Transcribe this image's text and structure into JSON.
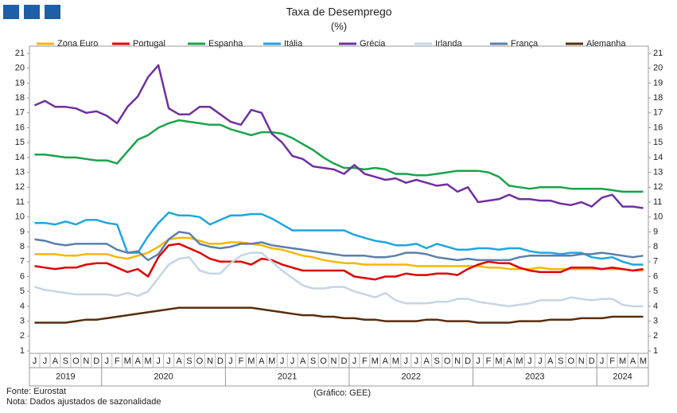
{
  "chart_data": {
    "type": "line",
    "title": "Taxa de Desemprego",
    "subtitle": "(%)",
    "categories": [
      "J",
      "J",
      "A",
      "S",
      "O",
      "N",
      "D",
      "J",
      "F",
      "M",
      "A",
      "M",
      "J",
      "J",
      "A",
      "S",
      "O",
      "N",
      "D",
      "J",
      "F",
      "M",
      "A",
      "M",
      "J",
      "J",
      "A",
      "S",
      "O",
      "N",
      "D",
      "J",
      "F",
      "M",
      "A",
      "M",
      "J",
      "J",
      "A",
      "S",
      "O",
      "N",
      "D",
      "J",
      "F",
      "M",
      "A",
      "M",
      "J",
      "J",
      "A",
      "S",
      "O",
      "N",
      "D",
      "J",
      "F",
      "M",
      "A",
      "M"
    ],
    "years": [
      "2019",
      "2020",
      "2021",
      "2022",
      "2023",
      "2024"
    ],
    "series": [
      {
        "name": "Zona Euro",
        "color": "#f5b800",
        "values": [
          7.5,
          7.5,
          7.5,
          7.4,
          7.4,
          7.5,
          7.5,
          7.5,
          7.3,
          7.2,
          7.4,
          7.6,
          8.0,
          8.5,
          8.6,
          8.6,
          8.4,
          8.2,
          8.2,
          8.3,
          8.3,
          8.2,
          8.1,
          7.9,
          7.8,
          7.6,
          7.4,
          7.3,
          7.1,
          7.0,
          6.9,
          6.9,
          6.8,
          6.8,
          6.8,
          6.8,
          6.8,
          6.7,
          6.7,
          6.7,
          6.7,
          6.7,
          6.7,
          6.7,
          6.6,
          6.6,
          6.5,
          6.5,
          6.5,
          6.6,
          6.5,
          6.5,
          6.5,
          6.5,
          6.5,
          6.5,
          6.5,
          6.5,
          6.4,
          6.4
        ]
      },
      {
        "name": "Portugal",
        "color": "#e00000",
        "values": [
          6.7,
          6.6,
          6.5,
          6.6,
          6.6,
          6.8,
          6.9,
          6.9,
          6.6,
          6.3,
          6.5,
          6.0,
          7.3,
          8.1,
          8.2,
          7.9,
          7.6,
          7.2,
          7.0,
          7.0,
          7.0,
          6.8,
          7.2,
          7.1,
          6.8,
          6.6,
          6.4,
          6.4,
          6.4,
          6.4,
          6.4,
          6.0,
          5.9,
          5.8,
          6.0,
          6.0,
          6.2,
          6.1,
          6.1,
          6.2,
          6.2,
          6.1,
          6.5,
          6.8,
          7.0,
          6.9,
          6.9,
          6.6,
          6.4,
          6.3,
          6.3,
          6.3,
          6.6,
          6.6,
          6.6,
          6.5,
          6.6,
          6.5,
          6.4,
          6.5
        ]
      },
      {
        "name": "Espanha",
        "color": "#1aa34a",
        "values": [
          14.2,
          14.2,
          14.1,
          14.0,
          14.0,
          13.9,
          13.8,
          13.8,
          13.6,
          14.4,
          15.2,
          15.5,
          16.0,
          16.3,
          16.5,
          16.4,
          16.3,
          16.2,
          16.2,
          15.9,
          15.7,
          15.5,
          15.7,
          15.7,
          15.6,
          15.3,
          14.9,
          14.5,
          14.0,
          13.6,
          13.3,
          13.3,
          13.2,
          13.3,
          13.2,
          12.9,
          12.9,
          12.8,
          12.8,
          12.9,
          13.0,
          13.1,
          13.1,
          13.1,
          13.0,
          12.7,
          12.1,
          12.0,
          11.9,
          12.0,
          12.0,
          12.0,
          11.9,
          11.9,
          11.9,
          11.9,
          11.8,
          11.7,
          11.7,
          11.7
        ]
      },
      {
        "name": "Itália",
        "color": "#1ea6e0",
        "values": [
          9.6,
          9.6,
          9.5,
          9.7,
          9.5,
          9.8,
          9.8,
          9.6,
          9.5,
          7.6,
          7.6,
          8.7,
          9.6,
          10.3,
          10.1,
          10.1,
          10.0,
          9.5,
          9.8,
          10.1,
          10.1,
          10.2,
          10.2,
          9.9,
          9.5,
          9.1,
          9.1,
          9.1,
          9.1,
          9.1,
          9.1,
          8.8,
          8.6,
          8.4,
          8.3,
          8.1,
          8.1,
          8.2,
          7.9,
          8.2,
          8.0,
          7.8,
          7.8,
          7.9,
          7.9,
          7.8,
          7.9,
          7.9,
          7.7,
          7.6,
          7.6,
          7.5,
          7.6,
          7.6,
          7.3,
          7.2,
          7.3,
          7.0,
          6.8,
          6.8
        ]
      },
      {
        "name": "Grécia",
        "color": "#7030a0",
        "values": [
          17.5,
          17.8,
          17.4,
          17.4,
          17.3,
          17.0,
          17.1,
          16.8,
          16.3,
          17.4,
          18.1,
          19.4,
          20.2,
          17.3,
          16.9,
          16.9,
          17.4,
          17.4,
          16.9,
          16.4,
          16.2,
          17.2,
          17.0,
          15.6,
          15.0,
          14.1,
          13.9,
          13.4,
          13.3,
          13.2,
          12.9,
          13.5,
          12.9,
          12.7,
          12.5,
          12.6,
          12.3,
          12.5,
          12.3,
          12.1,
          12.2,
          11.7,
          12.0,
          11.0,
          11.1,
          11.2,
          11.5,
          11.2,
          11.2,
          11.1,
          11.1,
          10.9,
          10.8,
          11.0,
          10.7,
          11.3,
          11.5,
          10.7,
          10.7,
          10.6
        ]
      },
      {
        "name": "Irlanda",
        "color": "#c5d5e6",
        "values": [
          5.3,
          5.1,
          5.0,
          4.9,
          4.8,
          4.8,
          4.8,
          4.8,
          4.7,
          4.9,
          4.7,
          5.0,
          5.9,
          6.8,
          7.2,
          7.3,
          6.4,
          6.2,
          6.2,
          6.9,
          7.4,
          7.6,
          7.6,
          7.0,
          6.4,
          5.9,
          5.4,
          5.2,
          5.2,
          5.3,
          5.3,
          5.0,
          4.8,
          4.6,
          4.9,
          4.4,
          4.2,
          4.2,
          4.2,
          4.3,
          4.3,
          4.5,
          4.5,
          4.3,
          4.2,
          4.1,
          4.0,
          4.1,
          4.2,
          4.4,
          4.4,
          4.4,
          4.6,
          4.5,
          4.4,
          4.5,
          4.5,
          4.1,
          4.0,
          4.0
        ]
      },
      {
        "name": "França",
        "color": "#5a7fad",
        "values": [
          8.5,
          8.4,
          8.2,
          8.1,
          8.2,
          8.2,
          8.2,
          8.2,
          7.8,
          7.6,
          7.7,
          7.1,
          7.5,
          8.5,
          9.0,
          8.9,
          8.2,
          8.0,
          7.9,
          8.0,
          8.2,
          8.2,
          8.3,
          8.1,
          8.0,
          7.9,
          7.8,
          7.7,
          7.6,
          7.5,
          7.4,
          7.4,
          7.4,
          7.3,
          7.3,
          7.4,
          7.6,
          7.6,
          7.5,
          7.3,
          7.2,
          7.1,
          7.2,
          7.1,
          7.1,
          7.1,
          7.1,
          7.3,
          7.4,
          7.4,
          7.4,
          7.4,
          7.4,
          7.5,
          7.5,
          7.6,
          7.5,
          7.4,
          7.3,
          7.4
        ]
      },
      {
        "name": "Alemanha",
        "color": "#5a2d0c",
        "values": [
          2.9,
          2.9,
          2.9,
          2.9,
          3.0,
          3.1,
          3.1,
          3.2,
          3.3,
          3.4,
          3.5,
          3.6,
          3.7,
          3.8,
          3.9,
          3.9,
          3.9,
          3.9,
          3.9,
          3.9,
          3.9,
          3.9,
          3.8,
          3.7,
          3.6,
          3.5,
          3.4,
          3.4,
          3.3,
          3.3,
          3.2,
          3.2,
          3.1,
          3.1,
          3.0,
          3.0,
          3.0,
          3.0,
          3.1,
          3.1,
          3.0,
          3.0,
          3.0,
          2.9,
          2.9,
          2.9,
          2.9,
          3.0,
          3.0,
          3.0,
          3.1,
          3.1,
          3.1,
          3.2,
          3.2,
          3.2,
          3.3,
          3.3,
          3.3,
          3.3
        ]
      }
    ],
    "ylim": [
      1,
      21
    ],
    "yticks": [
      1,
      2,
      3,
      4,
      5,
      6,
      7,
      8,
      9,
      10,
      11,
      12,
      13,
      14,
      15,
      16,
      17,
      18,
      19,
      20,
      21
    ],
    "grid": false
  },
  "footer": {
    "source": "Fonte: Eurostat",
    "note": "Nota: Dados ajustados de sazonalidade",
    "credit": "(Gráfico: GEE)"
  }
}
